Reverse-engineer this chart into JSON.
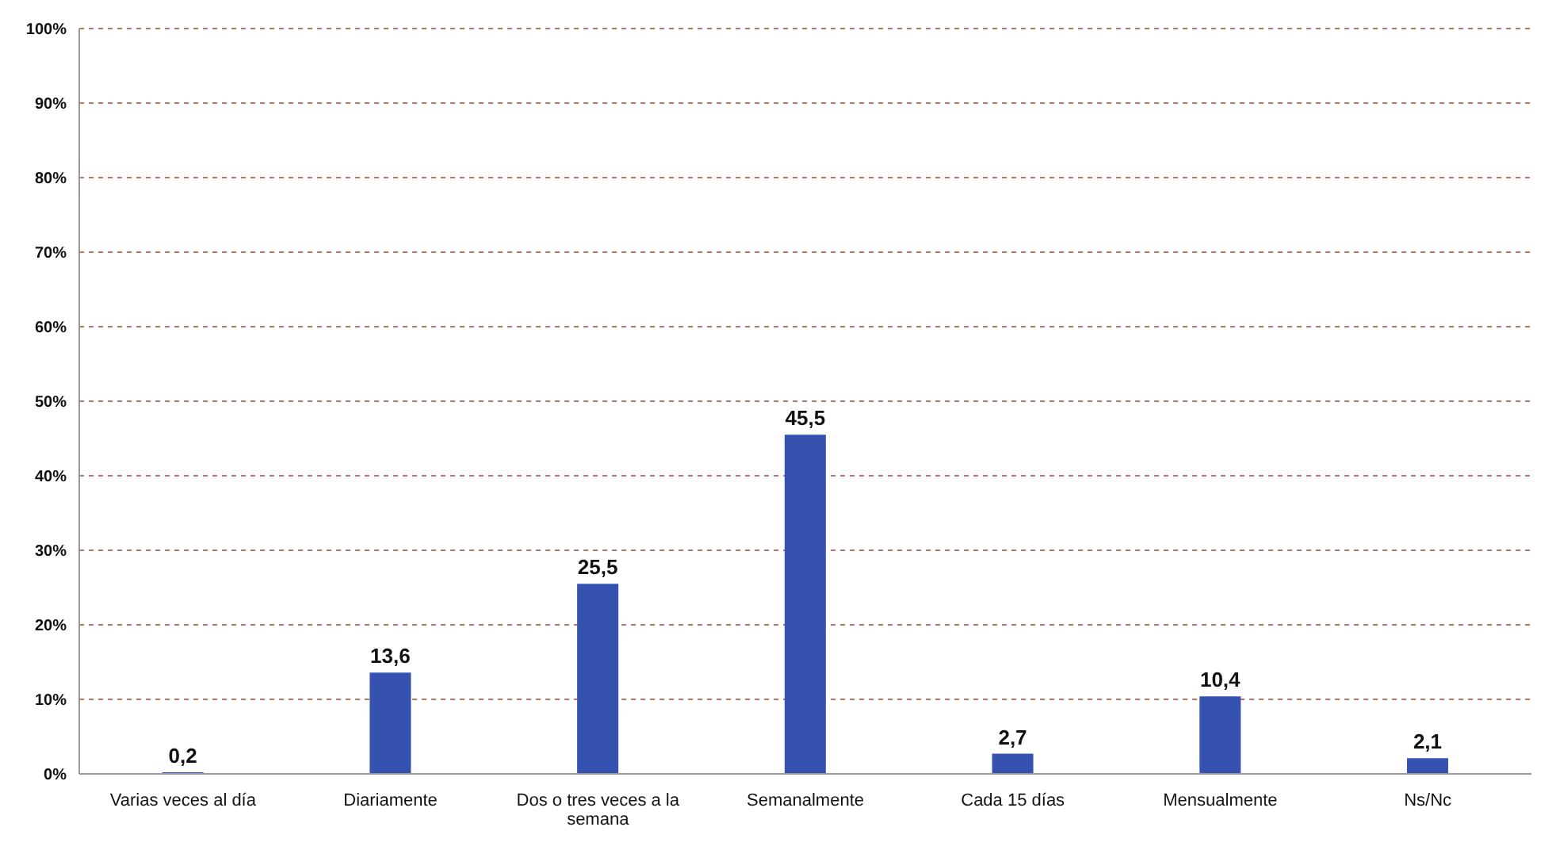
{
  "chart_data": {
    "type": "bar",
    "categories": [
      "Varias veces al día",
      "Diariamente",
      "Dos o tres veces a la semana",
      "Semanalmente",
      "Cada 15 días",
      "Mensualmente",
      "Ns/Nc"
    ],
    "values": [
      0.2,
      13.6,
      25.5,
      45.5,
      2.7,
      10.4,
      2.1
    ],
    "value_labels": [
      "0,2",
      "13,6",
      "25,5",
      "45,5",
      "2,7",
      "10,4",
      "2,1"
    ],
    "color": "#3552b0",
    "ylim": [
      0,
      100
    ],
    "yticks": [
      {
        "value": 0,
        "label": "0%"
      },
      {
        "value": 10,
        "label": "10%"
      },
      {
        "value": 20,
        "label": "20%"
      },
      {
        "value": 30,
        "label": "30%"
      },
      {
        "value": 40,
        "label": "40%"
      },
      {
        "value": 50,
        "label": "50%"
      },
      {
        "value": 60,
        "label": "60%"
      },
      {
        "value": 70,
        "label": "70%"
      },
      {
        "value": 80,
        "label": "80%"
      },
      {
        "value": 90,
        "label": "90%"
      },
      {
        "value": 100,
        "label": "100%"
      }
    ],
    "grid": "y"
  }
}
